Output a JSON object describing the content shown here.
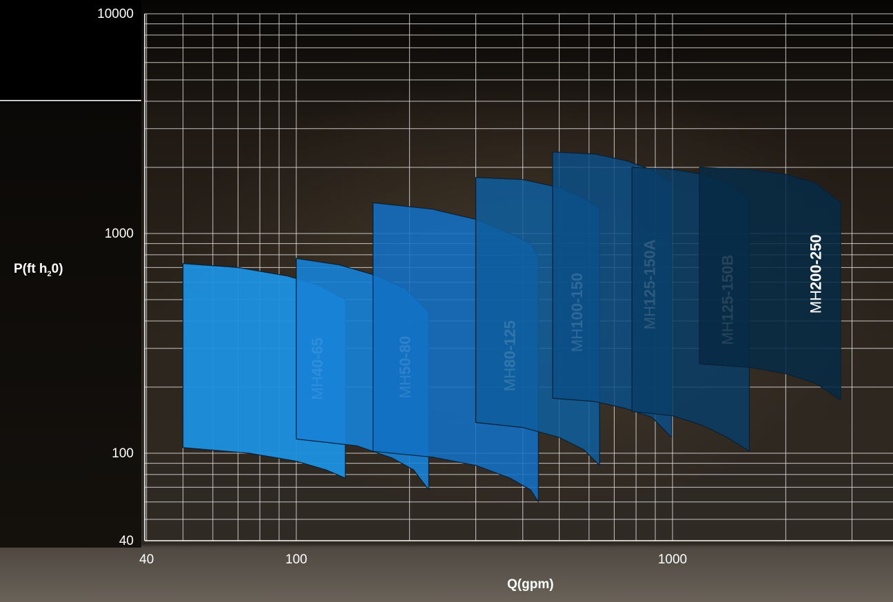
{
  "chart_data": {
    "type": "area",
    "title": "",
    "xlabel": "Q(gpm)",
    "ylabel": {
      "main": "P(ft h",
      "sub": "2",
      "tail": "0)"
    },
    "x_scale": "log",
    "y_scale": "log",
    "xlim": [
      40,
      3000
    ],
    "ylim": [
      40,
      10000
    ],
    "x_ticks": [
      {
        "value": 40,
        "label": "40"
      },
      {
        "value": 100,
        "label": "100"
      },
      {
        "value": 1000,
        "label": "1000"
      }
    ],
    "y_ticks": [
      {
        "value": 40,
        "label": "40"
      },
      {
        "value": 100,
        "label": "100"
      },
      {
        "value": 1000,
        "label": "1000"
      },
      {
        "value": 10000,
        "label": "10000"
      }
    ],
    "grid": true,
    "series": [
      {
        "name_prefix": "MH",
        "name_bold": "40-65",
        "color": "#1d90e0",
        "opacity": 0.95,
        "q_min": 50,
        "q_max": 135,
        "top": [
          [
            50,
            730
          ],
          [
            70,
            700
          ],
          [
            95,
            640
          ],
          [
            115,
            580
          ],
          [
            135,
            500
          ]
        ],
        "bottom": [
          [
            50,
            106
          ],
          [
            75,
            100
          ],
          [
            100,
            92
          ],
          [
            120,
            84
          ],
          [
            135,
            77
          ]
        ]
      },
      {
        "name_prefix": "MH",
        "name_bold": "50-80",
        "color": "#1782d6",
        "opacity": 0.9,
        "q_min": 100,
        "q_max": 225,
        "top": [
          [
            100,
            770
          ],
          [
            130,
            720
          ],
          [
            165,
            640
          ],
          [
            195,
            560
          ],
          [
            225,
            440
          ]
        ],
        "bottom": [
          [
            100,
            116
          ],
          [
            145,
            108
          ],
          [
            180,
            95
          ],
          [
            205,
            84
          ],
          [
            225,
            68
          ]
        ]
      },
      {
        "name_prefix": "MH",
        "name_bold": "80-125",
        "color": "#1270c4",
        "opacity": 0.88,
        "q_min": 160,
        "q_max": 440,
        "top": [
          [
            160,
            1380
          ],
          [
            230,
            1290
          ],
          [
            300,
            1160
          ],
          [
            370,
            1000
          ],
          [
            420,
            900
          ],
          [
            440,
            780
          ]
        ],
        "bottom": [
          [
            160,
            102
          ],
          [
            230,
            96
          ],
          [
            300,
            88
          ],
          [
            370,
            77
          ],
          [
            420,
            68
          ],
          [
            440,
            60
          ]
        ]
      },
      {
        "name_prefix": "MH",
        "name_bold": "100-150",
        "color": "#0e5e9e",
        "opacity": 0.85,
        "q_min": 300,
        "q_max": 640,
        "top": [
          [
            300,
            1800
          ],
          [
            400,
            1760
          ],
          [
            500,
            1620
          ],
          [
            580,
            1450
          ],
          [
            640,
            1300
          ]
        ],
        "bottom": [
          [
            300,
            138
          ],
          [
            400,
            131
          ],
          [
            500,
            118
          ],
          [
            580,
            104
          ],
          [
            640,
            88
          ]
        ]
      },
      {
        "name_prefix": "MH",
        "name_bold": "125-150A",
        "color": "#0b4e86",
        "opacity": 0.85,
        "q_min": 480,
        "q_max": 995,
        "top": [
          [
            480,
            2350
          ],
          [
            620,
            2300
          ],
          [
            750,
            2150
          ],
          [
            880,
            1950
          ],
          [
            995,
            1700
          ]
        ],
        "bottom": [
          [
            480,
            178
          ],
          [
            620,
            172
          ],
          [
            750,
            160
          ],
          [
            880,
            146
          ],
          [
            995,
            118
          ]
        ]
      },
      {
        "name_prefix": "MH",
        "name_bold": "125-150B",
        "color": "#093d66",
        "opacity": 0.85,
        "q_min": 780,
        "q_max": 1600,
        "top": [
          [
            780,
            2000
          ],
          [
            1000,
            1960
          ],
          [
            1200,
            1860
          ],
          [
            1400,
            1700
          ],
          [
            1600,
            1450
          ]
        ],
        "bottom": [
          [
            780,
            155
          ],
          [
            1000,
            148
          ],
          [
            1200,
            134
          ],
          [
            1400,
            118
          ],
          [
            1600,
            102
          ]
        ]
      },
      {
        "name_prefix": "MH",
        "name_bold": "200-250",
        "color": "#072a44",
        "opacity": 0.88,
        "q_min": 1180,
        "q_max": 2800,
        "top": [
          [
            1180,
            2000
          ],
          [
            1600,
            1960
          ],
          [
            2000,
            1860
          ],
          [
            2400,
            1700
          ],
          [
            2800,
            1380
          ]
        ],
        "bottom": [
          [
            1180,
            255
          ],
          [
            1600,
            246
          ],
          [
            2000,
            230
          ],
          [
            2400,
            208
          ],
          [
            2800,
            175
          ]
        ]
      }
    ]
  },
  "colors": {
    "grid": "#e0e0e0",
    "text": "#ffffff",
    "background_top": "#000000"
  }
}
